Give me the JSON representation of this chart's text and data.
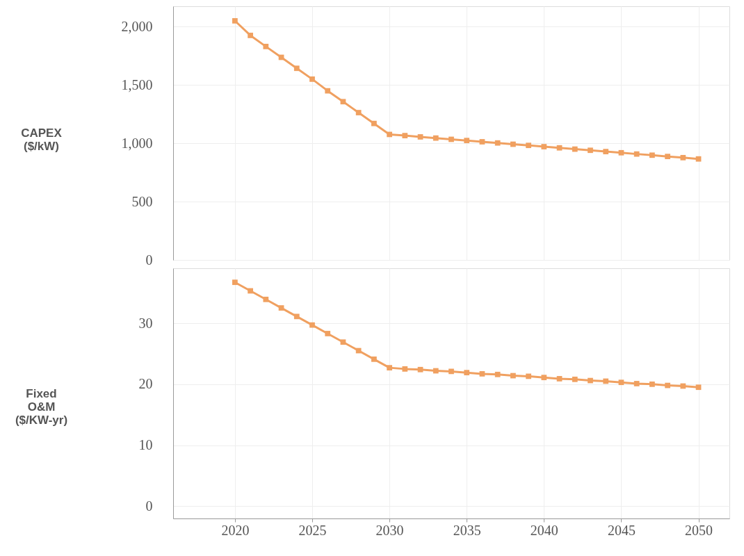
{
  "chart_data": [
    {
      "type": "line",
      "ylabel": "CAPEX ($/kW)",
      "x": [
        2020,
        2021,
        2022,
        2023,
        2024,
        2025,
        2026,
        2027,
        2028,
        2029,
        2030,
        2031,
        2032,
        2033,
        2034,
        2035,
        2036,
        2037,
        2038,
        2039,
        2040,
        2041,
        2042,
        2043,
        2044,
        2045,
        2046,
        2047,
        2048,
        2049,
        2050
      ],
      "series": [
        {
          "color": "#f0a060",
          "values": [
            2050,
            1925,
            1830,
            1737,
            1643,
            1550,
            1450,
            1357,
            1263,
            1170,
            1076,
            1066,
            1055,
            1045,
            1034,
            1024,
            1013,
            1003,
            992,
            982,
            971,
            961,
            950,
            940,
            929,
            919,
            908,
            898,
            887,
            877,
            866
          ]
        }
      ],
      "xlim": [
        2016,
        2052
      ],
      "xticks": [
        2020,
        2025,
        2030,
        2035,
        2040,
        2045,
        2050
      ],
      "ylim": [
        0,
        2175
      ],
      "yticks": [
        0,
        500,
        {
          "value": 1000,
          "label": "1,000"
        },
        {
          "value": 1500,
          "label": "1,500"
        },
        {
          "value": 2000,
          "label": "2,000"
        }
      ],
      "grid": true,
      "marker": "square",
      "line_style": "solid",
      "tick_labels": "y"
    },
    {
      "type": "line",
      "ylabel": "Fixed O&M ($/KW-yr)",
      "x": [
        2020,
        2021,
        2022,
        2023,
        2024,
        2025,
        2026,
        2027,
        2028,
        2029,
        2030,
        2031,
        2032,
        2033,
        2034,
        2035,
        2036,
        2037,
        2038,
        2039,
        2040,
        2041,
        2042,
        2043,
        2044,
        2045,
        2046,
        2047,
        2048,
        2049,
        2050
      ],
      "series": [
        {
          "color": "#f0a060",
          "values": [
            36.7,
            35.3,
            33.9,
            32.5,
            31.1,
            29.7,
            28.3,
            26.9,
            25.5,
            24.1,
            22.7,
            22.5,
            22.4,
            22.2,
            22.1,
            21.9,
            21.7,
            21.6,
            21.4,
            21.3,
            21.1,
            20.9,
            20.8,
            20.6,
            20.5,
            20.3,
            20.1,
            20.0,
            19.8,
            19.7,
            19.5
          ]
        }
      ],
      "xlim": [
        2016,
        2052
      ],
      "xticks": [
        2020,
        2025,
        2030,
        2035,
        2040,
        2045,
        2050
      ],
      "ylim": [
        -2,
        39
      ],
      "yticks": [
        0,
        10,
        20,
        30
      ],
      "grid": true,
      "marker": "square",
      "line_style": "solid"
    }
  ]
}
